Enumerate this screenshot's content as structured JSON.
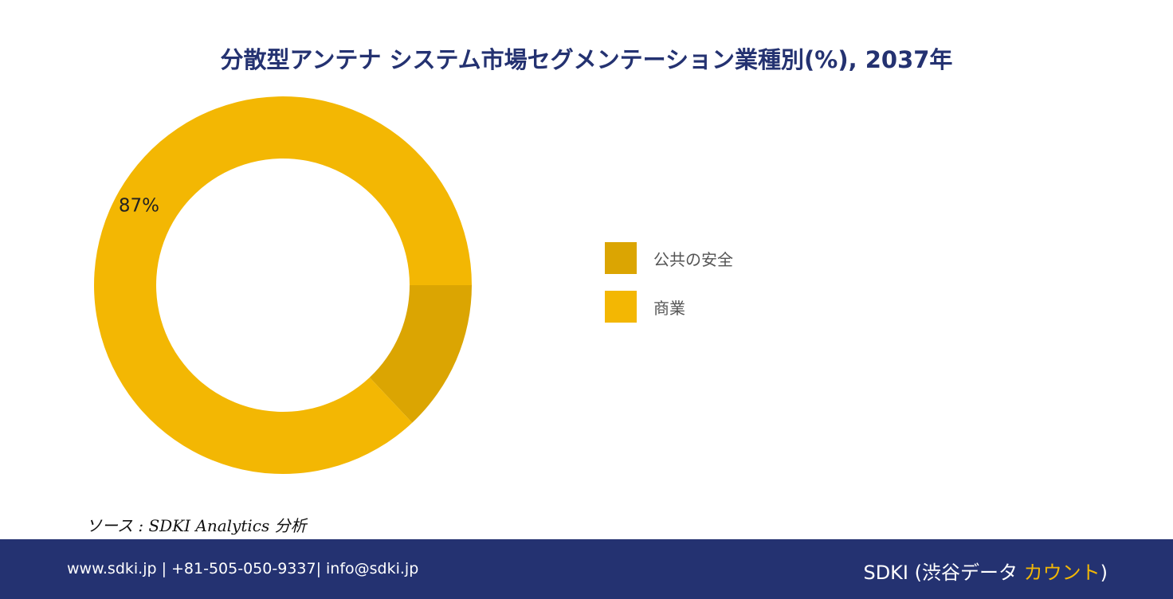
{
  "chart_data": {
    "type": "pie",
    "title": "分散型アンテナ システム市場セグメンテーション業種別(%), 2037年",
    "categories": [
      "公共の安全",
      "商業"
    ],
    "values": [
      13,
      87
    ],
    "data_labels": [
      "",
      "87%"
    ],
    "colors": [
      "#dba502",
      "#f3b703"
    ],
    "legend_position": "right",
    "donut": true
  },
  "source": "ソース : SDKI Analytics 分析",
  "footer": {
    "contact": "www.sdki.jp | +81-505-050-9337| info@sdki.jp",
    "brand_main": "SDKI (渋谷データ ",
    "brand_accent": "カウント",
    "brand_close": ")",
    "background_color": "#243271",
    "accent_color": "#f2b705"
  }
}
